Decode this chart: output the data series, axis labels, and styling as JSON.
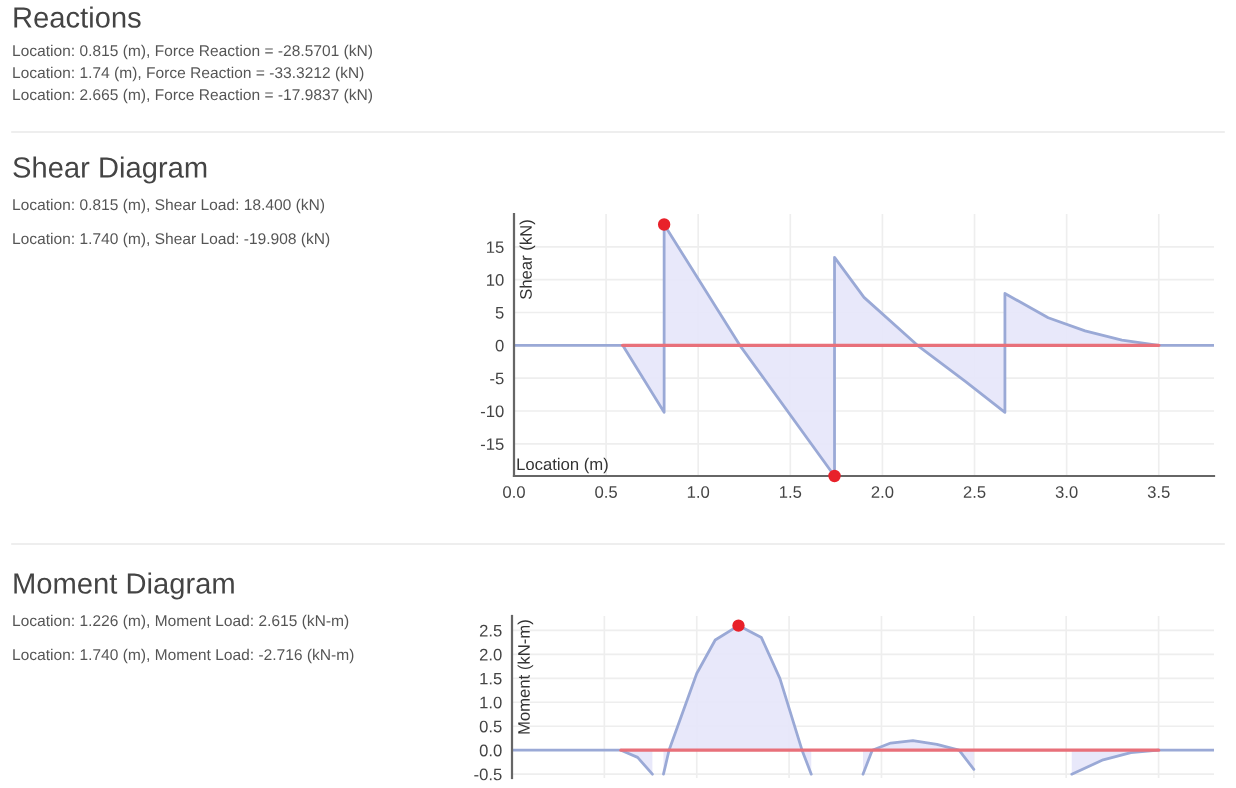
{
  "chart_data": [
    {
      "type": "other",
      "title": "Reactions",
      "annotations": [
        "Location: 0.815 (m), Force Reaction = -28.5701 (kN)",
        "Location: 1.74 (m), Force Reaction = -33.3212 (kN)",
        "Location: 2.665 (m), Force Reaction = -17.9837 (kN)"
      ]
    },
    {
      "type": "other",
      "title": "Shear Diagram",
      "annotations": [
        "Location: 0.815 (m), Shear Load: 18.400 (kN)",
        "Location: 1.740 (m), Shear Load: -19.908 (kN)"
      ]
    },
    {
      "type": "area",
      "xlabel": "Location (m)",
      "ylabel": "Shear (kN)",
      "xlim": [
        0,
        3.8
      ],
      "xticks": [
        {
          "value": 0,
          "label": "0.0"
        },
        {
          "value": 0.5,
          "label": "0.5"
        },
        {
          "value": 1,
          "label": "1.0"
        },
        {
          "value": 1.5,
          "label": "1.5"
        },
        {
          "value": 2,
          "label": "2.0"
        },
        {
          "value": 2.5,
          "label": "2.5"
        },
        {
          "value": 3,
          "label": "3.0"
        },
        {
          "value": 3.5,
          "label": "3.5"
        }
      ],
      "ylim": [
        -19.9,
        20
      ],
      "yticks": [
        -15,
        -10,
        -5,
        0,
        5,
        10,
        15
      ],
      "grid": true,
      "series": [
        {
          "type": "area",
          "color": "#9aa9d6",
          "x": [
            0,
            0.59,
            0.815,
            0.815,
            1.226,
            1.74,
            1.74,
            1.9,
            2.19,
            2.45,
            2.665,
            2.665,
            2.9,
            3.1,
            3.3,
            3.5,
            3.8
          ],
          "values": [
            0,
            0,
            -10.2,
            18.4,
            0,
            -19.9,
            13.4,
            7.3,
            0,
            -5.5,
            -10.2,
            7.9,
            4.2,
            2.2,
            0.8,
            0,
            0
          ]
        },
        {
          "type": "line",
          "color": "#e8707a",
          "x": [
            0.59,
            1.0,
            1.5,
            2.0,
            2.5,
            3.0,
            3.5
          ],
          "values": [
            0,
            0,
            0,
            0,
            0,
            0,
            0
          ]
        },
        {
          "type": "scatter",
          "color": "#e8212a",
          "x": [
            0.815,
            1.74
          ],
          "values": [
            18.4,
            -19.9
          ]
        }
      ]
    },
    {
      "type": "other",
      "title": "Moment Diagram",
      "annotations": [
        "Location: 1.226 (m), Moment Load: 2.615 (kN-m)",
        "Location: 1.740 (m), Moment Load: -2.716 (kN-m)"
      ]
    },
    {
      "type": "area",
      "ylabel": "Moment (kN-m)",
      "xlim": [
        0,
        3.8
      ],
      "ylim": [
        -0.58,
        2.8
      ],
      "yticks": [
        {
          "value": -0.5,
          "label": "-0.5"
        },
        {
          "value": 0,
          "label": "0.0"
        },
        {
          "value": 0.5,
          "label": "0.5"
        },
        {
          "value": 1,
          "label": "1.0"
        },
        {
          "value": 1.5,
          "label": "1.5"
        },
        {
          "value": 2,
          "label": "2.0"
        },
        {
          "value": 2.5,
          "label": "2.5"
        }
      ],
      "tick_labels": "y",
      "grid": true,
      "series": [
        {
          "type": "area",
          "color": "#9aa9d6",
          "x": [
            0,
            0.59,
            0.68,
            0.76,
            0.8,
            0.82,
            0.85,
            1.0,
            1.1,
            1.226,
            1.35,
            1.45,
            1.57,
            1.62,
            1.7,
            1.9,
            1.95,
            2.05,
            2.17,
            2.3,
            2.42,
            2.5,
            2.8,
            3.03,
            3.2,
            3.35,
            3.5,
            3.8
          ],
          "values": [
            0,
            0,
            -0.15,
            -0.5,
            null,
            -0.5,
            0,
            1.6,
            2.3,
            2.6,
            2.35,
            1.5,
            0,
            -0.5,
            null,
            -0.5,
            0,
            0.15,
            0.2,
            0.12,
            0,
            -0.4,
            null,
            -0.5,
            -0.2,
            -0.05,
            0,
            0
          ]
        },
        {
          "type": "line",
          "color": "#e8707a",
          "x": [
            0.59,
            1.0,
            1.5,
            2.0,
            2.5,
            3.0,
            3.5
          ],
          "values": [
            0,
            0,
            0,
            0,
            0,
            0,
            0
          ]
        },
        {
          "type": "scatter",
          "color": "#e8212a",
          "x": [
            1.226
          ],
          "values": [
            2.6
          ]
        }
      ]
    }
  ]
}
